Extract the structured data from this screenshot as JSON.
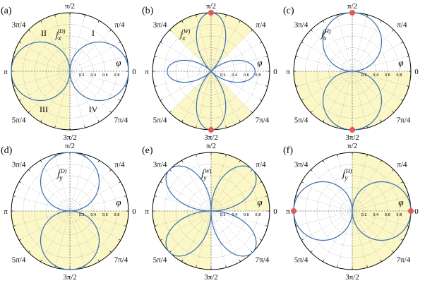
{
  "chart_data": [
    {
      "type": "polar",
      "panel": "(a)",
      "curve_label": "j_x^(D)",
      "function": "|cos φ|",
      "shaded_quadrants": [
        2,
        3
      ],
      "quadrant_labels": [
        "I",
        "II",
        "III",
        "IV"
      ],
      "markers": [],
      "angle_labels": [
        "π/2",
        "π/4",
        "0",
        "7π/4",
        "3π/2",
        "5π/4",
        "π",
        "3π/4"
      ],
      "radial_ticks": [
        "0.2",
        "0.4",
        "0.6",
        "0.8"
      ],
      "rlim": [
        0,
        1
      ],
      "axis_label": "φ"
    },
    {
      "type": "polar",
      "panel": "(b)",
      "curve_label": "j_x^(W)",
      "function": "|sin 2φ|·|sin φ| (petals at 0, π/2, π, 3π/2)",
      "shaded_sectors": [
        [
          45,
          135
        ],
        [
          225,
          315
        ]
      ],
      "markers": [
        {
          "angle": 90,
          "r": 1.0
        },
        {
          "angle": 270,
          "r": 1.0
        }
      ],
      "angle_labels": [
        "π/2",
        "π/4",
        "0",
        "7π/4",
        "3π/2",
        "5π/4",
        "π",
        "3π/4"
      ],
      "radial_ticks": [
        "0.2",
        "0.4",
        "0.6",
        "0.8"
      ],
      "rlim": [
        0,
        1
      ],
      "axis_label": "φ"
    },
    {
      "type": "polar",
      "panel": "(c)",
      "curve_label": "j_x^(H)",
      "function": "|sin φ|",
      "shaded_quadrants": [
        1,
        2,
        3,
        4
      ],
      "shaded_half": "lower",
      "markers": [
        {
          "angle": 90,
          "r": 1.0
        },
        {
          "angle": 270,
          "r": 1.0
        }
      ],
      "angle_labels": [
        "π/2",
        "π/4",
        "0",
        "7π/4",
        "3π/2",
        "5π/4",
        "π",
        "3π/4"
      ],
      "radial_ticks": [
        "0.2",
        "0.4",
        "0.6",
        "0.8"
      ],
      "rlim": [
        0,
        1
      ],
      "axis_label": "φ"
    },
    {
      "type": "polar",
      "panel": "(d)",
      "curve_label": "j_y^(D)",
      "function": "|sin φ|",
      "shaded_half": "lower",
      "markers": [],
      "angle_labels": [
        "π/2",
        "π/4",
        "0",
        "7π/4",
        "3π/2",
        "5π/4",
        "π",
        "3π/4"
      ],
      "radial_ticks": [
        "0.2",
        "0.4",
        "0.6",
        "0.8"
      ],
      "rlim": [
        0,
        1
      ],
      "axis_label": "φ"
    },
    {
      "type": "polar",
      "panel": "(e)",
      "curve_label": "j_y^(W)",
      "function": "|sin 2φ| petals along diagonals",
      "shaded_quadrants": [
        1,
        3
      ],
      "markers": [],
      "angle_labels": [
        "π/2",
        "π/4",
        "0",
        "7π/4",
        "3π/2",
        "5π/4",
        "π",
        "3π/4"
      ],
      "radial_ticks": [
        "0.2",
        "0.4",
        "0.6",
        "0.8"
      ],
      "rlim": [
        0,
        1
      ],
      "axis_label": "φ"
    },
    {
      "type": "polar",
      "panel": "(f)",
      "curve_label": "j_y^(H)",
      "function": "|cos φ|",
      "shaded_half": "right",
      "markers": [
        {
          "angle": 0,
          "r": 1.0
        },
        {
          "angle": 180,
          "r": 1.0
        }
      ],
      "angle_labels": [
        "π/2",
        "π/4",
        "0",
        "7π/4",
        "3π/2",
        "5π/4",
        "π",
        "3π/4"
      ],
      "radial_ticks": [
        "0.2",
        "0.4",
        "0.6",
        "0.8"
      ],
      "rlim": [
        0,
        1
      ],
      "axis_label": "φ"
    }
  ],
  "colors": {
    "shade": "#fbf7c6",
    "curve": "#3a6fb0",
    "grid": "#9a9a9a",
    "marker": "#e05a5a"
  }
}
